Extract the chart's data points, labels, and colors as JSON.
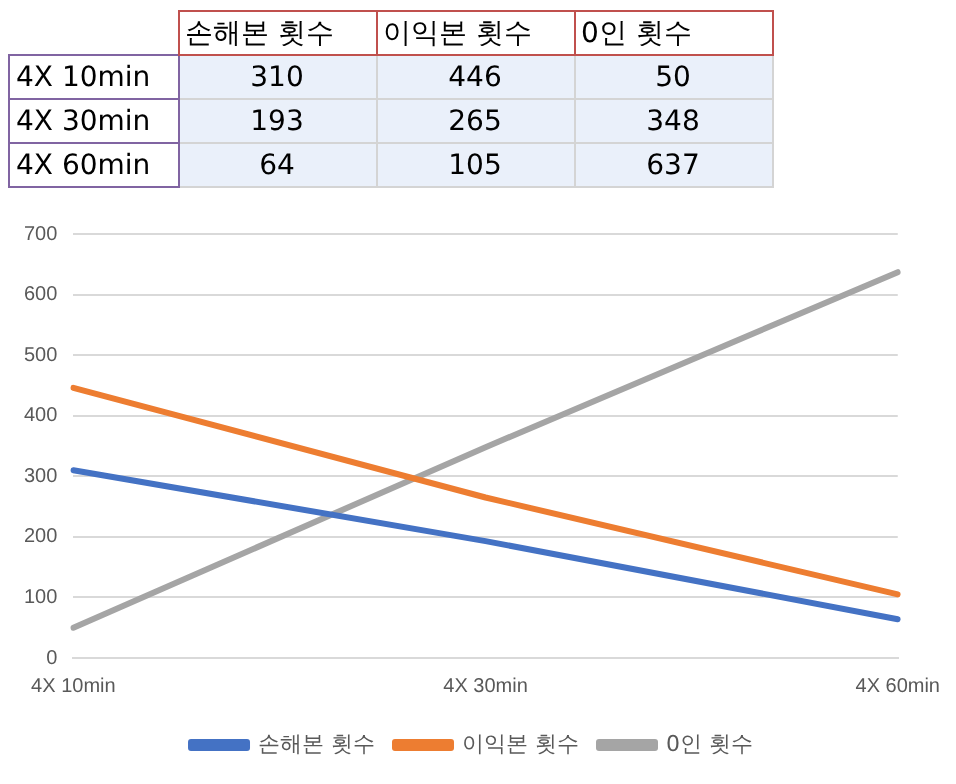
{
  "chart_data": [
    {
      "type": "heatmap",
      "categories": [
        "손해본 횟수",
        "이익본 횟수",
        "0인 횟수"
      ],
      "y_categories": [
        "4X 10min",
        "4X 30min",
        "4X 60min"
      ],
      "cells": [
        [
          310,
          446,
          50
        ],
        [
          193,
          265,
          348
        ],
        [
          64,
          105,
          637
        ]
      ],
      "data_labels": true
    },
    {
      "type": "line",
      "categories": [
        "4X 10min",
        "4X 30min",
        "4X 60min"
      ],
      "series": [
        {
          "name": "손해본 횟수",
          "color": "#4472c4",
          "values": [
            310,
            193,
            64
          ]
        },
        {
          "name": "이익본 횟수",
          "color": "#ed7d31",
          "values": [
            446,
            265,
            105
          ]
        },
        {
          "name": "0인 횟수",
          "color": "#a5a5a5",
          "values": [
            50,
            348,
            637
          ]
        }
      ],
      "ylim": [
        0,
        700
      ],
      "yticks": [
        0,
        100,
        200,
        300,
        400,
        500,
        600,
        700
      ],
      "grid": "y",
      "legend": "bottom",
      "marker": "none",
      "line_style": "solid"
    }
  ]
}
